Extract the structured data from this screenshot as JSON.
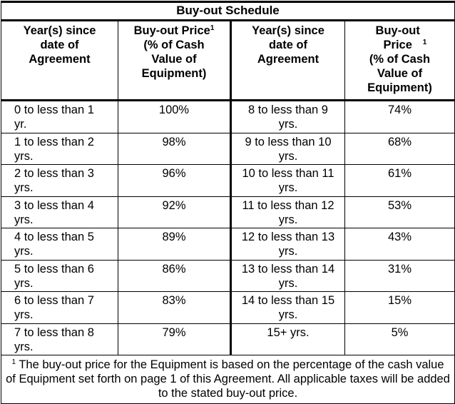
{
  "title": "Buy-out Schedule",
  "headers": {
    "years": "Year(s) since date of Agreement",
    "price": "Buy-out Price",
    "price_note": "1",
    "price_sub": "(% of Cash Value of Equipment)"
  },
  "rows_left": [
    {
      "years": "0 to less than 1 yr.",
      "price": "100%"
    },
    {
      "years": "1 to less than 2 yrs.",
      "price": "98%"
    },
    {
      "years": "2 to less than 3 yrs.",
      "price": "96%"
    },
    {
      "years": "3 to less than 4 yrs.",
      "price": "92%"
    },
    {
      "years": "4 to less than 5 yrs.",
      "price": "89%"
    },
    {
      "years": "5 to less than 6 yrs.",
      "price": "86%"
    },
    {
      "years": "6 to less than 7 yrs.",
      "price": "83%"
    },
    {
      "years": "7 to less than 8 yrs.",
      "price": "79%"
    }
  ],
  "rows_right": [
    {
      "years": "8 to less than 9 yrs.",
      "price": "74%"
    },
    {
      "years": "9 to less than 10 yrs.",
      "price": "68%"
    },
    {
      "years": "10 to less than 11 yrs.",
      "price": "61%"
    },
    {
      "years": "11 to less than 12 yrs.",
      "price": "53%"
    },
    {
      "years": "12 to less than 13 yrs.",
      "price": "43%"
    },
    {
      "years": "13 to less than 14 yrs.",
      "price": "31%"
    },
    {
      "years": "14 to less than 15 yrs.",
      "price": "15%"
    },
    {
      "years": "15+ yrs.",
      "price": "5%"
    }
  ],
  "footnote": {
    "marker": "1",
    "text": " The buy-out price for the Equipment is based on the percentage of the cash value of Equipment set forth on page 1 of this Agreement. All applicable taxes will be added to the stated buy-out price."
  }
}
